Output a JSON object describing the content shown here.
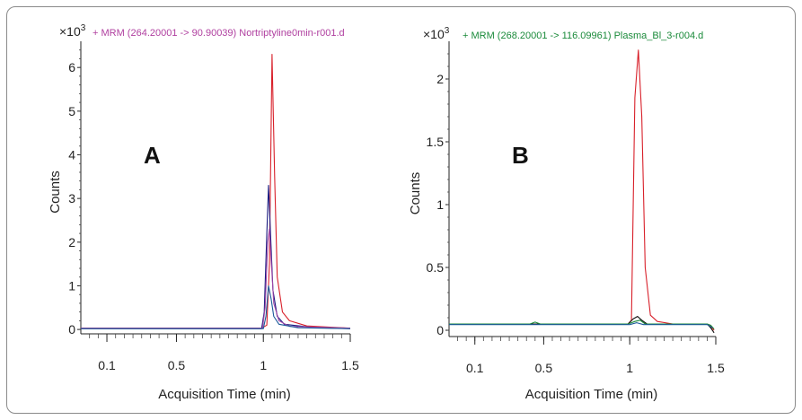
{
  "chart_data": [
    {
      "type": "line",
      "panel_label": "A",
      "title": "+ MRM (264.20001 -> 90.90039) Nortriptyline0min-r001.d",
      "title_color": "#b040a0",
      "multiplier": "×10",
      "multiplier_exp": "3",
      "xlabel": "Acquisition Time (min)",
      "ylabel": "Counts",
      "xlim": [
        -0.05,
        1.5
      ],
      "ylim": [
        -0.1,
        6.6
      ],
      "xticks": [
        "0.1",
        "0.5",
        "1",
        "1.5"
      ],
      "xtick_values": [
        0.1,
        0.5,
        1,
        1.5
      ],
      "yticks": [
        "0",
        "1",
        "2",
        "3",
        "4",
        "5",
        "6"
      ],
      "ytick_values": [
        0,
        1,
        2,
        3,
        4,
        5,
        6
      ],
      "series": [
        {
          "color": "#d8202a",
          "x": [
            -0.05,
            0.99,
            1.02,
            1.035,
            1.05,
            1.065,
            1.08,
            1.11,
            1.15,
            1.25,
            1.5
          ],
          "y": [
            0.03,
            0.03,
            0.1,
            1.5,
            6.3,
            3.5,
            1.2,
            0.4,
            0.2,
            0.08,
            0.03
          ]
        },
        {
          "color": "#1a1a80",
          "x": [
            -0.05,
            0.99,
            1.005,
            1.02,
            1.03,
            1.04,
            1.055,
            1.08,
            1.12,
            1.3,
            1.5
          ],
          "y": [
            0.02,
            0.02,
            0.4,
            2.2,
            3.3,
            2.3,
            0.9,
            0.3,
            0.12,
            0.04,
            0.02
          ]
        },
        {
          "color": "#a048a8",
          "x": [
            -0.05,
            0.995,
            1.01,
            1.025,
            1.035,
            1.045,
            1.06,
            1.09,
            1.15,
            1.5
          ],
          "y": [
            0.03,
            0.03,
            0.5,
            2.0,
            2.3,
            1.6,
            0.6,
            0.2,
            0.07,
            0.03
          ]
        },
        {
          "color": "#1c5a9a",
          "x": [
            -0.05,
            1.0,
            1.015,
            1.03,
            1.045,
            1.06,
            1.09,
            1.2,
            1.5
          ],
          "y": [
            0.02,
            0.02,
            0.3,
            1.0,
            0.7,
            0.3,
            0.12,
            0.04,
            0.02
          ]
        }
      ]
    },
    {
      "type": "line",
      "panel_label": "B",
      "title": "+ MRM (268.20001 -> 116.09961) Plasma_Bl_3-r004.d",
      "title_color": "#1a8a3a",
      "multiplier": "×10",
      "multiplier_exp": "3",
      "xlabel": "Acquisition Time (min)",
      "ylabel": "Counts",
      "xlim": [
        -0.05,
        1.5
      ],
      "ylim": [
        -0.05,
        2.3
      ],
      "xticks": [
        "0.1",
        "0.5",
        "1",
        "1.5"
      ],
      "xtick_values": [
        0.1,
        0.5,
        1,
        1.5
      ],
      "yticks": [
        "0",
        "0.5",
        "1",
        "1.5",
        "2"
      ],
      "ytick_values": [
        0,
        0.5,
        1,
        1.5,
        2
      ],
      "series": [
        {
          "color": "#d8202a",
          "x": [
            -0.05,
            0.99,
            1.01,
            1.03,
            1.05,
            1.07,
            1.09,
            1.12,
            1.16,
            1.25,
            1.45,
            1.47,
            1.49
          ],
          "y": [
            0.05,
            0.05,
            0.08,
            1.85,
            2.23,
            1.7,
            0.5,
            0.12,
            0.07,
            0.05,
            0.05,
            0.03,
            0.0
          ]
        },
        {
          "color": "#111111",
          "x": [
            -0.05,
            0.99,
            1.02,
            1.045,
            1.07,
            1.1,
            1.45,
            1.47,
            1.49
          ],
          "y": [
            0.05,
            0.05,
            0.09,
            0.11,
            0.08,
            0.05,
            0.05,
            0.02,
            -0.02
          ]
        },
        {
          "color": "#1a8a3a",
          "x": [
            -0.05,
            0.42,
            0.45,
            0.48,
            0.99,
            1.03,
            1.06,
            1.09,
            1.45,
            1.47,
            1.49
          ],
          "y": [
            0.05,
            0.05,
            0.065,
            0.05,
            0.05,
            0.07,
            0.08,
            0.05,
            0.05,
            0.04,
            0.01
          ]
        },
        {
          "color": "#1c5a9a",
          "x": [
            -0.05,
            1.0,
            1.04,
            1.08,
            1.45,
            1.48
          ],
          "y": [
            0.045,
            0.045,
            0.06,
            0.045,
            0.045,
            0.02
          ]
        }
      ]
    }
  ]
}
